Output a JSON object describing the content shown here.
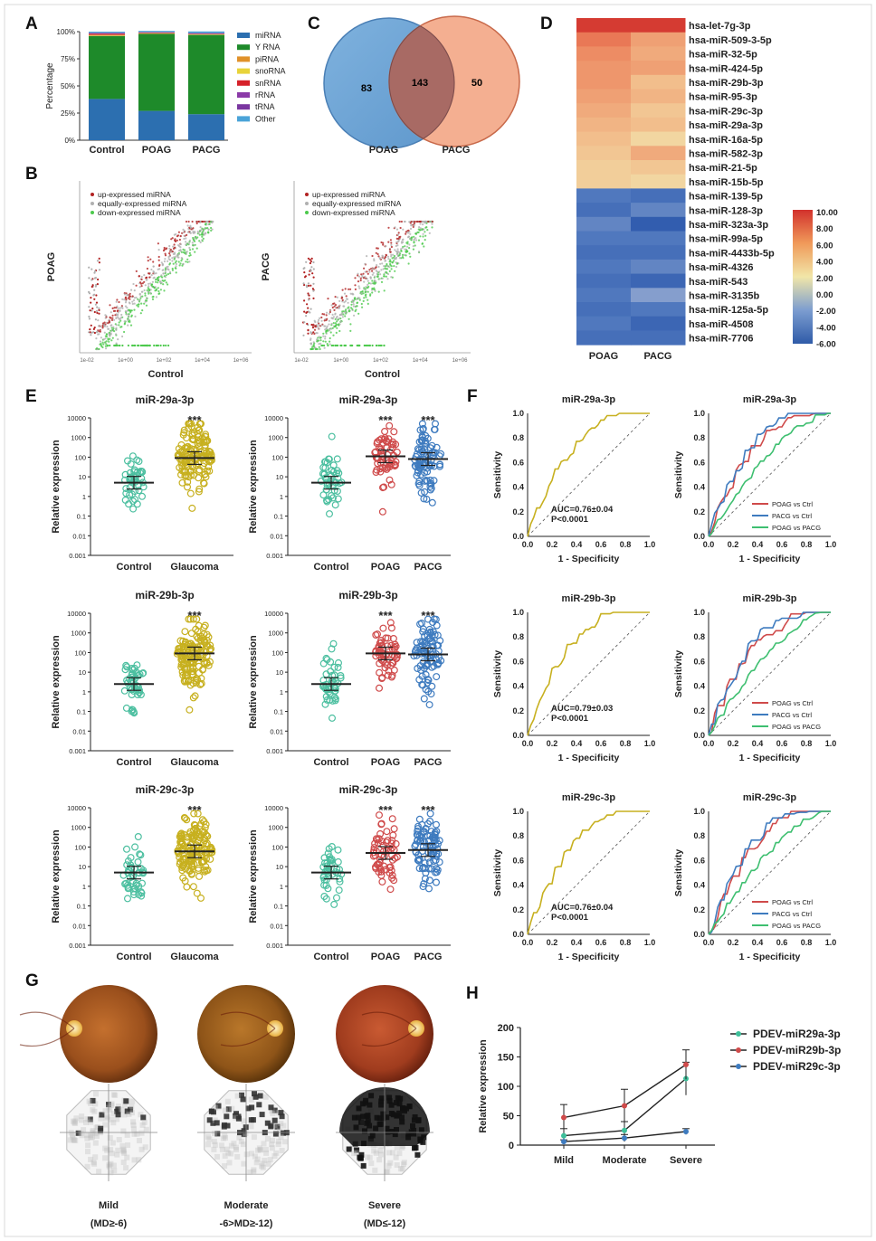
{
  "panels": {
    "A": {
      "label": "A",
      "ylabel": "Percentage",
      "yticks": [
        "0%",
        "25%",
        "50%",
        "75%",
        "100%"
      ],
      "categories": [
        "Control",
        "POAG",
        "PACG"
      ],
      "legend": [
        {
          "name": "miRNA",
          "color": "#2c6fb0"
        },
        {
          "name": "Y RNA",
          "color": "#1e8a2a"
        },
        {
          "name": "piRNA",
          "color": "#e0912a"
        },
        {
          "name": "snoRNA",
          "color": "#e8d33a"
        },
        {
          "name": "snRNA",
          "color": "#d6212a"
        },
        {
          "name": "rRNA",
          "color": "#8b3aa8"
        },
        {
          "name": "tRNA",
          "color": "#7a36a0"
        },
        {
          "name": "Other",
          "color": "#4aa3d8"
        }
      ]
    },
    "B": {
      "label": "B",
      "legend": [
        "up-expressed miRNA",
        "equally-expressed miRNA",
        "down-expressed miRNA"
      ],
      "legend_colors": [
        "#b22222",
        "#b0b0b0",
        "#4cc94c"
      ],
      "plot1": {
        "ylabel": "POAG",
        "xlabel": "Control"
      },
      "plot2": {
        "ylabel": "PACG",
        "xlabel": "Control"
      },
      "xticks": [
        "1e-02",
        "1e+00",
        "1e+02",
        "1e+04",
        "1e+06"
      ]
    },
    "C": {
      "label": "C",
      "left_only": "83",
      "overlap": "143",
      "right_only": "50",
      "left_name": "POAG",
      "right_name": "PACG"
    },
    "D": {
      "label": "D",
      "rows": [
        "hsa-let-7g-3p",
        "hsa-miR-509-3-5p",
        "hsa-miR-32-5p",
        "hsa-miR-424-5p",
        "hsa-miR-29b-3p",
        "hsa-miR-95-3p",
        "hsa-miR-29c-3p",
        "hsa-miR-29a-3p",
        "hsa-miR-16a-5p",
        "hsa-miR-582-3p",
        "hsa-miR-21-5p",
        "hsa-miR-15b-5p",
        "hsa-miR-139-5p",
        "hsa-miR-128-3p",
        "hsa-miR-323a-3p",
        "hsa-miR-99a-5p",
        "hsa-miR-4433b-5p",
        "hsa-miR-4326",
        "hsa-miR-543",
        "hsa-miR-3135b",
        "hsa-miR-125a-5p",
        "hsa-miR-4508",
        "hsa-miR-7706"
      ],
      "columns": [
        "POAG",
        "PACG"
      ],
      "values": [
        [
          9.5,
          9.5
        ],
        [
          6.5,
          4.5
        ],
        [
          5.5,
          4.0
        ],
        [
          5.0,
          4.5
        ],
        [
          5.0,
          3.0
        ],
        [
          4.5,
          3.5
        ],
        [
          4.0,
          2.5
        ],
        [
          3.5,
          3.0
        ],
        [
          3.0,
          1.5
        ],
        [
          2.5,
          4.0
        ],
        [
          2.0,
          2.5
        ],
        [
          2.0,
          1.5
        ],
        [
          -4.0,
          -4.5
        ],
        [
          -4.5,
          -3.5
        ],
        [
          -3.5,
          -5.5
        ],
        [
          -4.0,
          -4.0
        ],
        [
          -4.5,
          -4.5
        ],
        [
          -4.0,
          -3.5
        ],
        [
          -4.5,
          -5.0
        ],
        [
          -4.0,
          -2.5
        ],
        [
          -4.5,
          -4.0
        ],
        [
          -4.0,
          -5.0
        ],
        [
          -4.5,
          -4.5
        ]
      ],
      "scale": [
        "10.00",
        "8.00",
        "6.00",
        "4.00",
        "2.00",
        "0.00",
        "-2.00",
        "-4.00",
        "-6.00"
      ]
    },
    "E": {
      "label": "E",
      "ylabel": "Relative expression",
      "sig": "***",
      "yticks_a": [
        "10000",
        "1000",
        "100",
        "10",
        "1",
        "0.1",
        "0.01",
        "0.001"
      ],
      "plots": [
        {
          "title": "miR-29a-3p",
          "groups": [
            "Control",
            "Glaucoma"
          ],
          "means": [
            5,
            90
          ],
          "sig": [
            false,
            true
          ],
          "colors": [
            "#4cbfa0",
            "#c7b01f"
          ]
        },
        {
          "title": "miR-29a-3p",
          "groups": [
            "Control",
            "POAG",
            "PACG"
          ],
          "means": [
            5,
            110,
            80
          ],
          "sig": [
            false,
            true,
            true
          ],
          "colors": [
            "#4cbfa0",
            "#cf4a4a",
            "#3e7bbf"
          ]
        },
        {
          "title": "miR-29b-3p",
          "groups": [
            "Control",
            "Glaucoma"
          ],
          "means": [
            2.5,
            90
          ],
          "sig": [
            false,
            true
          ],
          "colors": [
            "#4cbfa0",
            "#c7b01f"
          ]
        },
        {
          "title": "miR-29b-3p",
          "groups": [
            "Control",
            "POAG",
            "PACG"
          ],
          "means": [
            2.5,
            90,
            80
          ],
          "sig": [
            false,
            true,
            true
          ],
          "colors": [
            "#4cbfa0",
            "#cf4a4a",
            "#3e7bbf"
          ]
        },
        {
          "title": "miR-29c-3p",
          "groups": [
            "Control",
            "Glaucoma"
          ],
          "means": [
            5,
            60
          ],
          "sig": [
            false,
            true
          ],
          "colors": [
            "#4cbfa0",
            "#c7b01f"
          ]
        },
        {
          "title": "miR-29c-3p",
          "groups": [
            "Control",
            "POAG",
            "PACG"
          ],
          "means": [
            5,
            50,
            70
          ],
          "sig": [
            false,
            true,
            true
          ],
          "colors": [
            "#4cbfa0",
            "#cf4a4a",
            "#3e7bbf"
          ]
        }
      ]
    },
    "F": {
      "label": "F",
      "xlabel": "1 - Specificity",
      "ylabel": "Sensitivity",
      "ticks": [
        "0.0",
        "0.2",
        "0.4",
        "0.6",
        "0.8",
        "1.0"
      ],
      "single": [
        {
          "title": "miR-29a-3p",
          "auc": "AUC=0.76±0.04",
          "p": "P<0.0001"
        },
        {
          "title": "miR-29b-3p",
          "auc": "AUC=0.79±0.03",
          "p": "P<0.0001"
        },
        {
          "title": "miR-29c-3p",
          "auc": "AUC=0.76±0.04",
          "p": "P<0.0001"
        }
      ],
      "multi": [
        {
          "title": "miR-29a-3p",
          "legend": [
            "POAG vs Ctrl",
            "PACG vs Ctrl",
            "POAG vs PACG"
          ]
        },
        {
          "title": "miR-29b-3p",
          "legend": [
            "POAG vs Ctrl",
            "PACG vs Ctrl",
            "POAG vs PACG"
          ]
        },
        {
          "title": "miR-29c-3p",
          "legend": [
            "POAG vs Ctrl",
            "PACG vs Ctrl",
            "POAG vs PACG"
          ]
        }
      ],
      "colors": {
        "single": "#c7b01f",
        "poag": "#cf4a4a",
        "pacg": "#3e7bbf",
        "poag_pacg": "#3ebf70"
      }
    },
    "G": {
      "label": "G",
      "stages": [
        {
          "name": "Mild",
          "md": "(MD≥-6)"
        },
        {
          "name": "Moderate",
          "md": "-6>MD≥-12)"
        },
        {
          "name": "Severe",
          "md": "(MD≤-12)"
        }
      ]
    },
    "H": {
      "label": "H"
    }
  },
  "chart_data": [
    {
      "type": "bar",
      "panel": "A",
      "ylabel": "Percentage",
      "ylim": [
        0,
        100
      ],
      "categories": [
        "Control",
        "POAG",
        "PACG"
      ],
      "series": [
        {
          "name": "miRNA",
          "values": [
            38,
            27,
            24
          ]
        },
        {
          "name": "Y RNA",
          "values": [
            58,
            71,
            73
          ]
        },
        {
          "name": "piRNA",
          "values": [
            0.5,
            0.3,
            0.3
          ]
        },
        {
          "name": "snoRNA",
          "values": [
            0.5,
            0.3,
            0.3
          ]
        },
        {
          "name": "snRNA",
          "values": [
            1,
            0.5,
            0.5
          ]
        },
        {
          "name": "rRNA",
          "values": [
            0.5,
            0.3,
            0.3
          ]
        },
        {
          "name": "tRNA",
          "values": [
            0.5,
            0.3,
            0.3
          ]
        },
        {
          "name": "Other",
          "values": [
            1,
            1,
            1.5
          ]
        }
      ]
    },
    {
      "type": "line",
      "panel": "H",
      "xlabel": "",
      "ylabel": "Relative expression",
      "categories": [
        "Mild",
        "Moderate",
        "Severe"
      ],
      "ylim": [
        0,
        200
      ],
      "yticks": [
        "0",
        "50",
        "100",
        "150",
        "200"
      ],
      "series": [
        {
          "name": "PDEV-miR29a-3p",
          "values": [
            16,
            25,
            113
          ],
          "err": [
            12,
            15,
            28
          ],
          "color": "#3ebf9a"
        },
        {
          "name": "PDEV-miR29b-3p",
          "values": [
            47,
            67,
            137
          ],
          "err": [
            22,
            28,
            25
          ],
          "color": "#cf4a4a"
        },
        {
          "name": "PDEV-miR29c-3p",
          "values": [
            6,
            12,
            23
          ],
          "err": [
            3,
            6,
            5
          ],
          "color": "#3e7bbf"
        }
      ]
    }
  ]
}
